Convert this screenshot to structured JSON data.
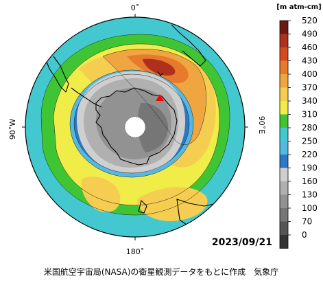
{
  "map": {
    "labels": {
      "top": "0˚",
      "bottom": "180˚",
      "left": "90˚W",
      "right": "90˚E"
    },
    "date": "2023/09/21",
    "footer": "米国航空宇宙局(NASA)の衛星観測データをもとに作成　気象庁",
    "station_marker_color": "#ff0000"
  },
  "legend": {
    "unit": "[m atm-cm]",
    "ticks": [
      "520",
      "490",
      "460",
      "430",
      "400",
      "370",
      "340",
      "310",
      "280",
      "250",
      "220",
      "190",
      "160",
      "130",
      "100",
      "70",
      "0"
    ],
    "colors": [
      "#6b1a12",
      "#b0301f",
      "#d64a1f",
      "#e77a2c",
      "#f0a640",
      "#f5cd50",
      "#f0ec48",
      "#3fc534",
      "#44c8cf",
      "#54b8e0",
      "#2c78c2",
      "#cfcfcf",
      "#b0b0b0",
      "#929292",
      "#767676",
      "#555555",
      "#343434"
    ]
  }
}
